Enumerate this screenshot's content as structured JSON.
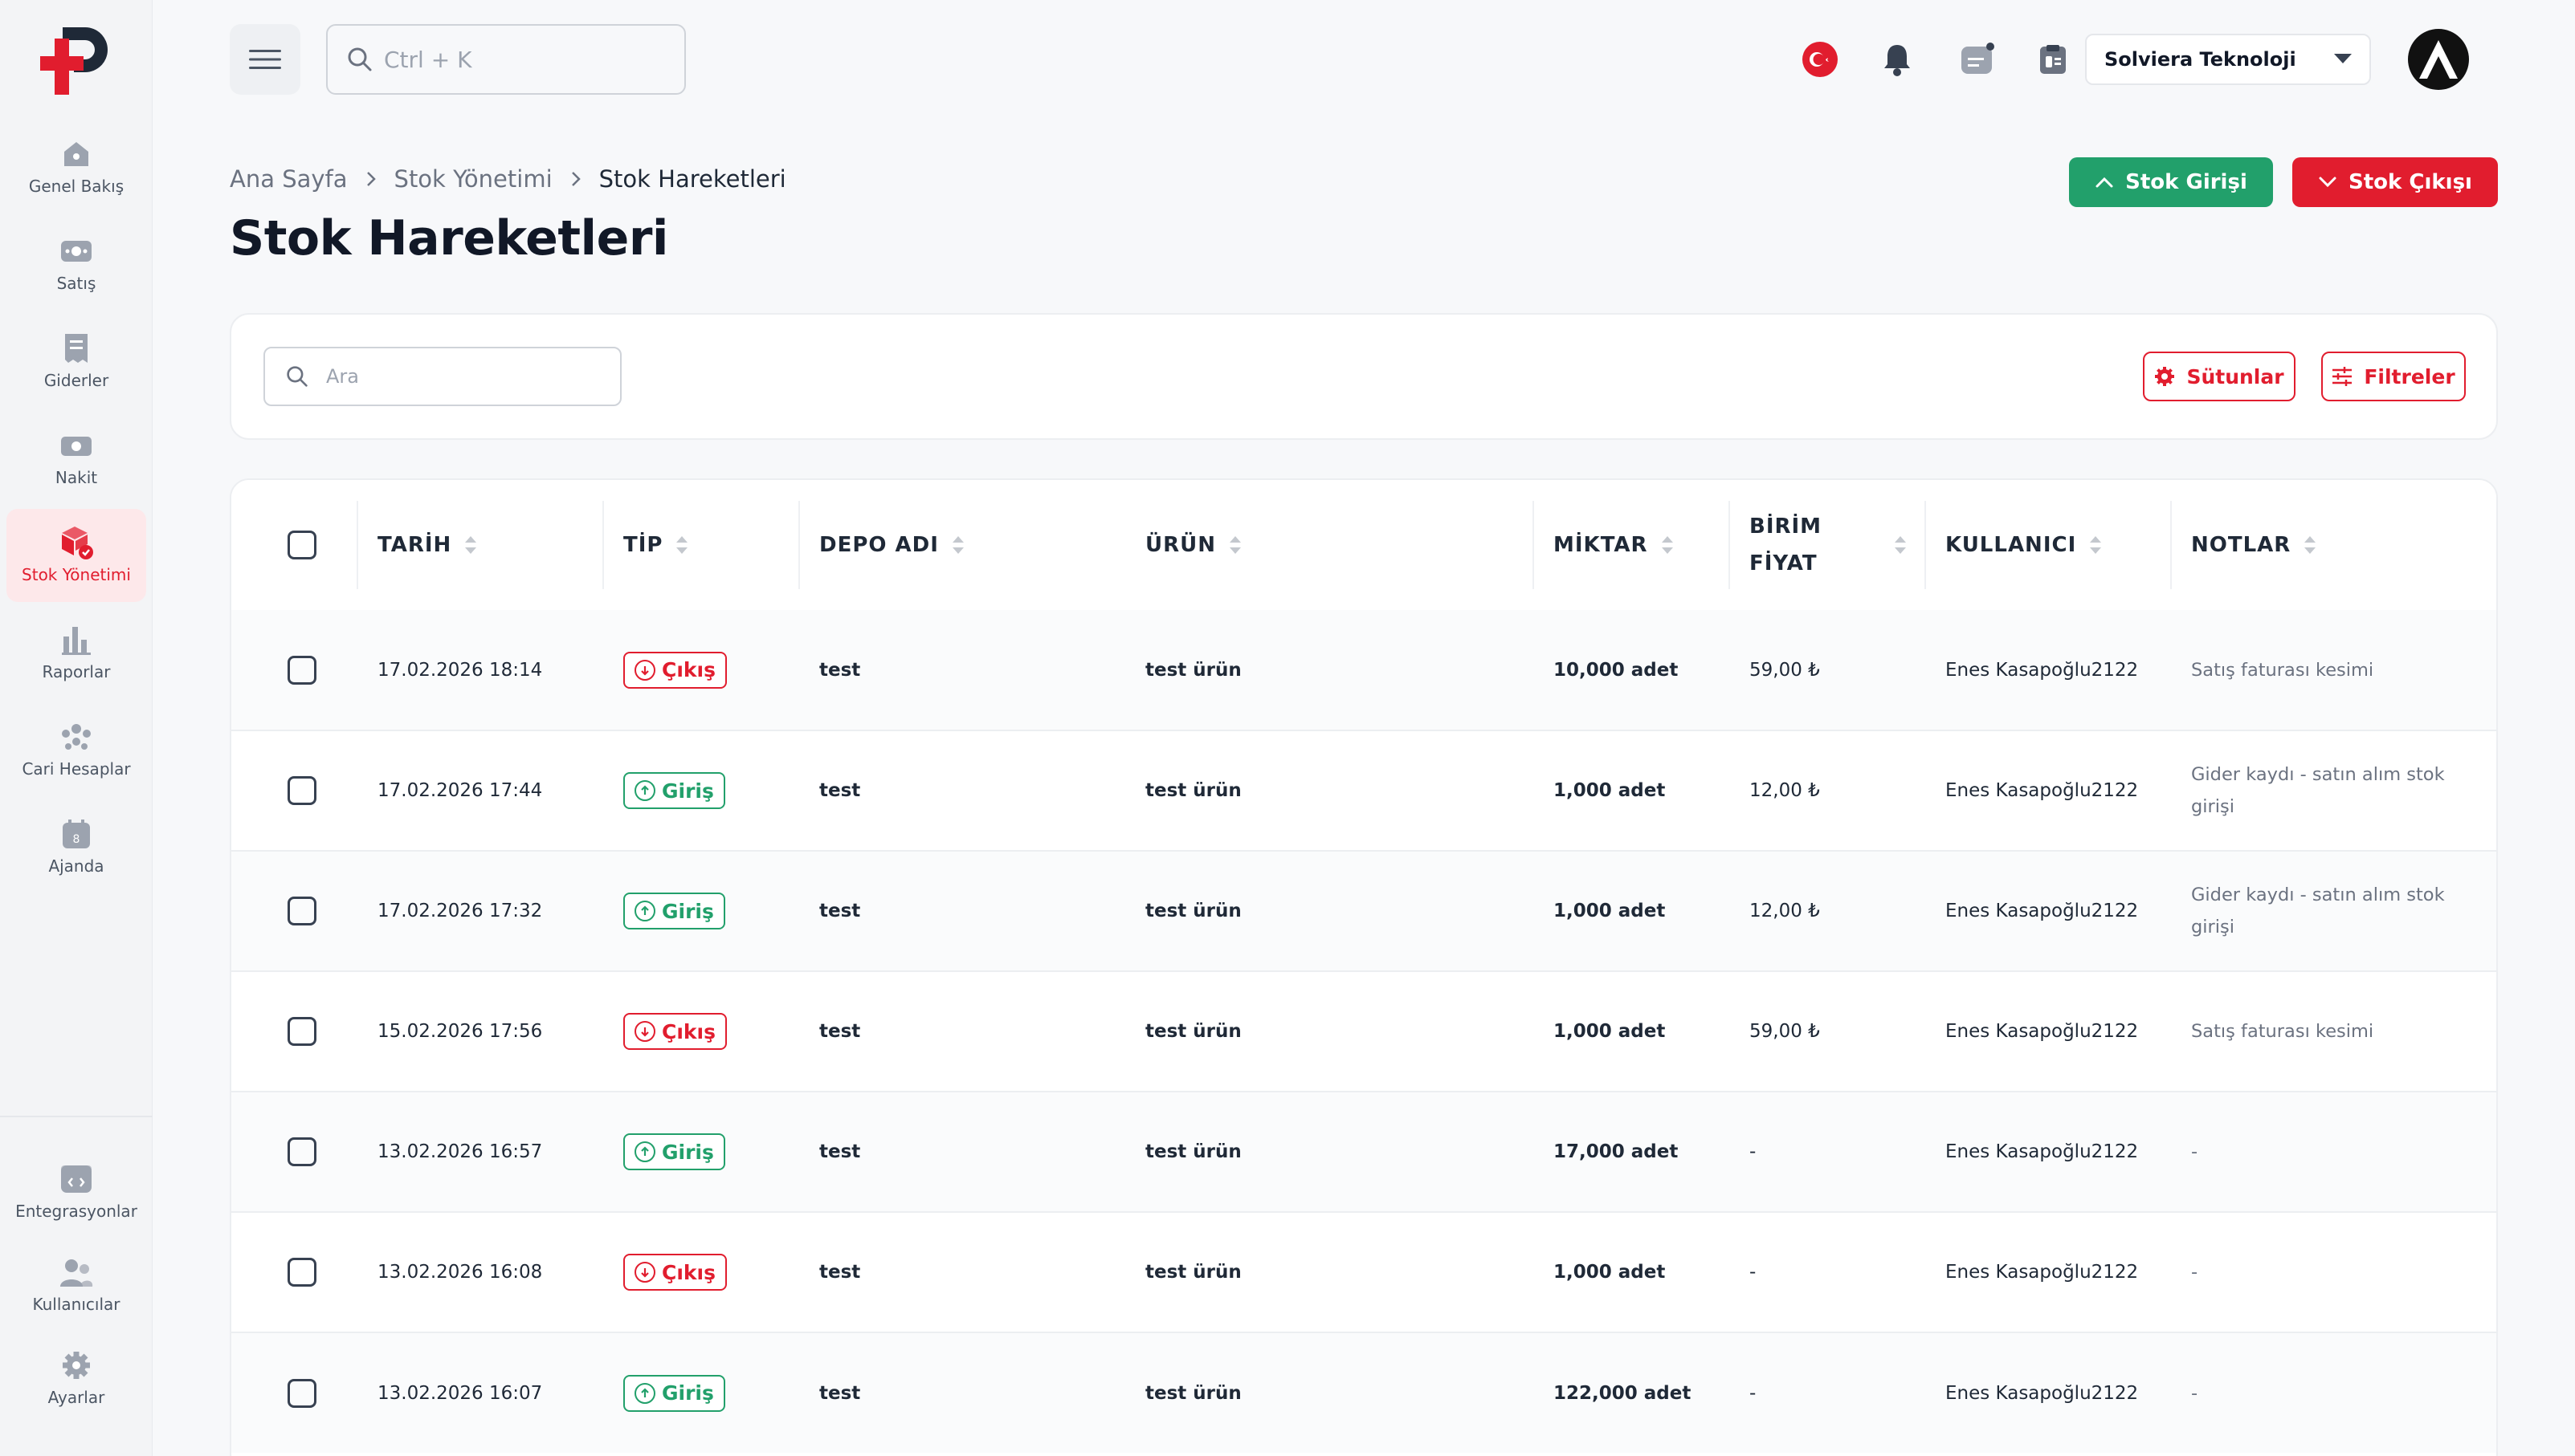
{
  "sidebar": {
    "items": [
      {
        "label": "Genel Bakış",
        "icon": "home-icon"
      },
      {
        "label": "Satış",
        "icon": "sales-icon"
      },
      {
        "label": "Giderler",
        "icon": "receipt-icon"
      },
      {
        "label": "Nakit",
        "icon": "cash-icon"
      },
      {
        "label": "Stok Yönetimi",
        "icon": "box-icon",
        "active": true
      },
      {
        "label": "Raporlar",
        "icon": "chart-icon"
      },
      {
        "label": "Cari Hesaplar",
        "icon": "users-group-icon"
      },
      {
        "label": "Ajanda",
        "icon": "calendar-icon"
      }
    ],
    "bottom_items": [
      {
        "label": "Entegrasyonlar",
        "icon": "integration-icon"
      },
      {
        "label": "Kullanıcılar",
        "icon": "users-icon"
      },
      {
        "label": "Ayarlar",
        "icon": "gear-icon"
      }
    ]
  },
  "topbar": {
    "search_placeholder": "Ctrl + K",
    "company": "Solviera Teknoloji"
  },
  "breadcrumb": [
    "Ana Sayfa",
    "Stok Yönetimi",
    "Stok Hareketleri"
  ],
  "page_title": "Stok Hareketleri",
  "actions": {
    "stock_in": "Stok Girişi",
    "stock_out": "Stok Çıkışı"
  },
  "filters": {
    "search_placeholder": "Ara",
    "columns_label": "Sütunlar",
    "filters_label": "Filtreler"
  },
  "table": {
    "headers": {
      "date": "TARİH",
      "type": "TİP",
      "warehouse": "DEPO ADI",
      "product": "ÜRÜN",
      "quantity": "MİKTAR",
      "unit_price_1": "BİRİM",
      "unit_price_2": "FİYAT",
      "user": "KULLANICI",
      "notes": "NOTLAR"
    },
    "rows": [
      {
        "date": "17.02.2026 18:14",
        "type": "Çıkış",
        "dir": "out",
        "warehouse": "test",
        "product": "test ürün",
        "quantity": "10,000 adet",
        "price": "59,00 ₺",
        "user": "Enes Kasapoğlu2122",
        "notes": "Satış faturası kesimi"
      },
      {
        "date": "17.02.2026 17:44",
        "type": "Giriş",
        "dir": "in",
        "warehouse": "test",
        "product": "test ürün",
        "quantity": "1,000 adet",
        "price": "12,00 ₺",
        "user": "Enes Kasapoğlu2122",
        "notes": "Gider kaydı - satın alım stok girişi"
      },
      {
        "date": "17.02.2026 17:32",
        "type": "Giriş",
        "dir": "in",
        "warehouse": "test",
        "product": "test ürün",
        "quantity": "1,000 adet",
        "price": "12,00 ₺",
        "user": "Enes Kasapoğlu2122",
        "notes": "Gider kaydı - satın alım stok girişi"
      },
      {
        "date": "15.02.2026 17:56",
        "type": "Çıkış",
        "dir": "out",
        "warehouse": "test",
        "product": "test ürün",
        "quantity": "1,000 adet",
        "price": "59,00 ₺",
        "user": "Enes Kasapoğlu2122",
        "notes": "Satış faturası kesimi"
      },
      {
        "date": "13.02.2026 16:57",
        "type": "Giriş",
        "dir": "in",
        "warehouse": "test",
        "product": "test ürün",
        "quantity": "17,000 adet",
        "price": "-",
        "user": "Enes Kasapoğlu2122",
        "notes": "-"
      },
      {
        "date": "13.02.2026 16:08",
        "type": "Çıkış",
        "dir": "out",
        "warehouse": "test",
        "product": "test ürün",
        "quantity": "1,000 adet",
        "price": "-",
        "user": "Enes Kasapoğlu2122",
        "notes": "-"
      },
      {
        "date": "13.02.2026 16:07",
        "type": "Giriş",
        "dir": "in",
        "warehouse": "test",
        "product": "test ürün",
        "quantity": "122,000 adet",
        "price": "-",
        "user": "Enes Kasapoğlu2122",
        "notes": "-"
      }
    ]
  },
  "colors": {
    "primary_red": "#e11d2e",
    "success_green": "#22a06b",
    "sidebar_bg": "#f3f4f6"
  }
}
